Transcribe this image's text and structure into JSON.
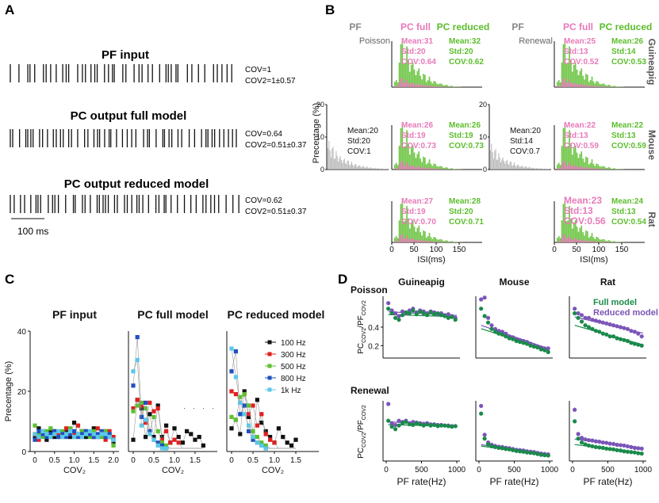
{
  "panels": {
    "A": {
      "letter": "A",
      "rows": [
        {
          "title": "PF input",
          "stat1": "COV=1",
          "stat2": "COV2=1±0.57"
        },
        {
          "title": "PC output full model",
          "stat1": "COV=0.64",
          "stat2": "COV2=0.51±0.37"
        },
        {
          "title": "PC output reduced model",
          "stat1": "COV=0.62",
          "stat2": "COV2=0.51±0.37"
        }
      ],
      "scalebar": "100 ms"
    },
    "B": {
      "letter": "B",
      "ylabel": "Precentage (%)",
      "xlabel": "ISI(ms)",
      "xticks": [
        "0",
        "50",
        "100",
        "150"
      ],
      "yticks": [
        "20",
        "10",
        "0"
      ],
      "colors": {
        "pf": "#b0b0b0",
        "full": "#e879b9",
        "reduced": "#5bbd2b"
      },
      "columns": [
        {
          "pf_head": "PF",
          "pf_kind": "Poisson",
          "full_head": "PC full",
          "reduced_head": "PC reduced"
        },
        {
          "pf_head": "PF",
          "pf_kind": "Renewal",
          "full_head": "PC full",
          "reduced_head": "PC reduced"
        }
      ],
      "row_labels": [
        "Guineapig",
        "Mouse",
        "Rat"
      ],
      "pf_stats": [
        {
          "mean": "Mean:20",
          "std": "Std:20",
          "cov": "COV:1"
        },
        {
          "mean": "Mean:20",
          "std": "Std:14",
          "cov": "COV:0.7"
        }
      ],
      "full_stats": [
        [
          {
            "mean": "Mean:31",
            "std": "Std:20",
            "cov": "COV:0.64"
          },
          {
            "mean": "Mean:25",
            "std": "Std:13",
            "cov": "COV:0.52"
          }
        ],
        [
          {
            "mean": "Mean:26",
            "std": "Std:19",
            "cov": "COV:0.73"
          },
          {
            "mean": "Mean:22",
            "std": "Std:13",
            "cov": "COV:0.59"
          }
        ],
        [
          {
            "mean": "Mean:27",
            "std": "Std:19",
            "cov": "COV:0.70"
          },
          {
            "mean": "Mean:23",
            "std": "Std:13",
            "cov": "COV:0.56"
          }
        ]
      ],
      "reduced_stats": [
        [
          {
            "mean": "Mean:32",
            "std": "Std:20",
            "cov": "COV:0.62"
          },
          {
            "mean": "Mean:26",
            "std": "Std:14",
            "cov": "COV:0.53"
          }
        ],
        [
          {
            "mean": "Mean:26",
            "std": "Std:19",
            "cov": "COV:0.73"
          },
          {
            "mean": "Mean:22",
            "std": "Std:13",
            "cov": "COV:0.59"
          }
        ],
        [
          {
            "mean": "Mean:28",
            "std": "Std:20",
            "cov": "COV:0.71"
          },
          {
            "mean": "Mean:24",
            "std": "Std:13",
            "cov": "COV:0.54"
          }
        ]
      ]
    },
    "C": {
      "letter": "C",
      "titles": [
        "PF input",
        "PC full model",
        "PC reduced model"
      ],
      "ylabel": "Precentage (%)",
      "xlabel": "COV₂",
      "yticks": [
        "40",
        "20",
        "0"
      ],
      "xticks_first": [
        "0",
        "0.5",
        "1.0",
        "1.5",
        "2.0"
      ],
      "xticks_other": [
        "0",
        "0.5",
        "1.0",
        "1.5",
        "2.0"
      ],
      "legend": [
        "100 Hz",
        "300 Hz",
        "500 Hz",
        "800 Hz",
        "1k Hz"
      ]
    },
    "D": {
      "letter": "D",
      "col_titles": [
        "Guineapig",
        "Mouse",
        "Rat"
      ],
      "row_titles": [
        "Poisson",
        "Renewal"
      ],
      "ylabel": "PCCOV2/PFCOV2",
      "ylabel_main": "PC",
      "ylabel_sub1": "COV2",
      "ylabel_mid": "/PF",
      "ylabel_sub2": "COV2",
      "xlabel": "PF rate(Hz)",
      "xticks": [
        "0",
        "500",
        "1000"
      ],
      "yticks": [
        "0.4",
        "0.2"
      ],
      "legend": [
        "Full model",
        "Reduced model"
      ],
      "colors": {
        "full": "#1a8a4a",
        "reduced": "#7b55b8"
      }
    }
  },
  "chart_data": [
    {
      "type": "bar",
      "panel": "B",
      "title": "",
      "xlabel": "ISI(ms)",
      "ylabel": "Precentage (%)",
      "xlim": [
        0,
        150
      ],
      "ylim": [
        0,
        20
      ],
      "series": [
        {
          "name": "PF",
          "color": "#b0b0b0",
          "values": [
            9,
            7.5,
            6,
            5,
            4.2,
            3.5,
            3,
            2.5,
            2,
            1.7,
            1.4,
            1.2,
            1,
            0.8,
            0.6,
            0.5,
            0.4,
            0.3,
            0.2,
            0.1
          ]
        },
        {
          "name": "PC full",
          "color": "#e879b9",
          "values": [
            2,
            15,
            12,
            9,
            7,
            5.5,
            4,
            3,
            2.2,
            1.6,
            1.1,
            0.7,
            0.4,
            0.2,
            0.1
          ]
        },
        {
          "name": "PC reduced",
          "color": "#5bbd2b",
          "values": [
            2,
            14,
            12,
            9,
            7,
            5.5,
            4,
            3,
            2.2,
            1.6,
            1.1,
            0.7,
            0.4,
            0.2,
            0.1
          ]
        }
      ]
    },
    {
      "type": "line",
      "panel": "C",
      "xlabel": "COV₂",
      "ylabel": "Precentage (%)",
      "ylim": [
        0,
        40
      ],
      "series": [
        {
          "name": "100 Hz",
          "color": "#111111",
          "markers": "square"
        },
        {
          "name": "300 Hz",
          "color": "#e02020",
          "markers": "square"
        },
        {
          "name": "500 Hz",
          "color": "#5cc030",
          "markers": "square"
        },
        {
          "name": "800 Hz",
          "color": "#2050c0",
          "markers": "square"
        },
        {
          "name": "1k Hz",
          "color": "#5cc8e8",
          "markers": "square"
        }
      ],
      "subplots": [
        {
          "title": "PF input",
          "x": [
            0,
            0.1,
            0.2,
            0.3,
            0.4,
            0.5,
            0.6,
            0.7,
            0.8,
            0.9,
            1.0,
            1.1,
            1.2,
            1.3,
            1.4,
            1.5,
            1.6,
            1.7,
            1.8,
            1.9,
            2.0
          ],
          "values": [
            [
              4,
              7,
              5,
              3,
              6,
              4,
              5,
              5,
              6,
              4,
              9,
              5,
              6,
              4,
              5,
              7,
              4,
              5,
              6,
              4,
              2
            ],
            [
              5,
              3,
              6,
              5,
              4,
              6,
              5,
              4,
              7,
              6,
              5,
              8,
              4,
              6,
              5,
              4,
              7,
              5,
              3,
              6,
              4
            ],
            [
              8,
              5,
              4,
              6,
              7,
              5,
              4,
              6,
              5,
              7,
              4,
              5,
              6,
              5,
              4,
              6,
              5,
              4,
              6,
              5,
              1
            ],
            [
              3,
              6,
              5,
              4,
              5,
              6,
              4,
              5,
              4,
              5,
              6,
              4,
              5,
              6,
              5,
              4,
              5,
              6,
              4,
              5,
              3
            ],
            [
              5,
              4,
              6,
              5,
              4,
              5,
              6,
              4,
              5,
              6,
              4,
              5,
              4,
              5,
              6,
              5,
              4,
              5,
              5,
              4,
              3
            ]
          ]
        },
        {
          "title": "PC full model",
          "x": [
            0,
            0.1,
            0.2,
            0.3,
            0.4,
            0.5,
            0.6,
            0.7,
            0.8,
            0.9,
            1.0,
            1.1,
            1.2,
            1.3,
            1.4,
            1.5,
            1.6,
            1.7
          ],
          "values": [
            [
              3,
              17,
              14,
              4,
              12,
              4,
              15,
              4,
              8,
              2,
              7,
              4,
              2,
              6,
              5,
              3,
              4,
              1
            ],
            [
              14,
              17,
              15,
              9,
              16,
              13,
              14,
              3,
              6,
              2,
              3,
              2,
              0,
              0,
              0,
              0,
              0,
              0
            ],
            [
              13,
              15,
              16,
              14,
              6,
              11,
              6,
              2,
              1,
              0,
              0,
              0,
              0,
              0,
              0,
              0,
              0,
              0
            ],
            [
              22,
              39,
              11,
              16,
              6,
              3,
              2,
              1,
              0,
              0,
              0,
              0,
              0,
              0,
              0,
              0,
              0,
              0
            ],
            [
              27,
              31,
              8,
              10,
              5,
              3,
              1,
              0,
              0,
              0,
              0,
              0,
              0,
              0,
              0,
              0,
              0,
              0
            ]
          ]
        },
        {
          "title": "PC reduced model",
          "x": [
            0,
            0.1,
            0.2,
            0.3,
            0.4,
            0.5,
            0.6,
            0.7,
            0.8,
            0.9,
            1.0,
            1.1,
            1.2,
            1.3,
            1.4,
            1.5
          ],
          "values": [
            [
              7,
              10,
              5,
              20,
              11,
              4,
              17,
              9,
              6,
              4,
              2,
              7,
              4,
              2,
              1,
              3
            ],
            [
              20,
              19,
              16,
              19,
              12,
              15,
              8,
              12,
              5,
              3,
              2,
              0,
              0,
              0,
              0,
              0
            ],
            [
              11,
              10,
              18,
              19,
              15,
              6,
              4,
              2,
              1,
              0,
              0,
              0,
              0,
              0,
              0,
              0
            ],
            [
              27,
              34,
              12,
              15,
              6,
              3,
              2,
              1,
              0,
              0,
              0,
              0,
              0,
              0,
              0,
              0
            ],
            [
              35,
              25,
              16,
              12,
              8,
              4,
              2,
              1,
              0,
              0,
              0,
              0,
              0,
              0,
              0,
              0
            ]
          ]
        }
      ]
    },
    {
      "type": "scatter",
      "panel": "D",
      "xlabel": "PF rate(Hz)",
      "xlim": [
        0,
        1000
      ],
      "x": [
        30,
        80,
        130,
        180,
        230,
        280,
        330,
        380,
        430,
        480,
        530,
        580,
        630,
        680,
        730,
        780,
        830,
        880,
        930,
        980
      ],
      "subplots": [
        {
          "row": "Poisson",
          "col": "Guineapig",
          "ylim": [
            0.1,
            0.7
          ],
          "full": [
            0.6,
            0.55,
            0.5,
            0.48,
            0.53,
            0.56,
            0.55,
            0.58,
            0.54,
            0.57,
            0.55,
            0.53,
            0.56,
            0.54,
            0.55,
            0.53,
            0.52,
            0.5,
            0.51,
            0.48
          ],
          "reduced": [
            0.66,
            0.58,
            0.55,
            0.52,
            0.57,
            0.55,
            0.58,
            0.6,
            0.56,
            0.58,
            0.57,
            0.55,
            0.57,
            0.56,
            0.54,
            0.55,
            0.53,
            0.54,
            0.52,
            0.5
          ]
        },
        {
          "row": "Poisson",
          "col": "Mouse",
          "ylim": [
            0.1,
            0.7
          ],
          "full": [
            0.6,
            0.52,
            0.45,
            0.38,
            0.35,
            0.33,
            0.32,
            0.3,
            0.28,
            0.27,
            0.25,
            0.24,
            0.23,
            0.22,
            0.2,
            0.19,
            0.18,
            0.16,
            0.15,
            0.13
          ],
          "reduced": [
            0.7,
            0.72,
            0.5,
            0.42,
            0.38,
            0.36,
            0.35,
            0.33,
            0.3,
            0.29,
            0.27,
            0.26,
            0.25,
            0.24,
            0.22,
            0.2,
            0.19,
            0.18,
            0.17,
            0.17
          ]
        },
        {
          "row": "Poisson",
          "col": "Rat",
          "ylim": [
            0.1,
            0.7
          ],
          "full": [
            0.55,
            0.5,
            0.46,
            0.42,
            0.4,
            0.38,
            0.36,
            0.35,
            0.33,
            0.32,
            0.3,
            0.3,
            0.28,
            0.27,
            0.26,
            0.25,
            0.23,
            0.22,
            0.21,
            0.2
          ],
          "reduced": [
            0.6,
            0.55,
            0.53,
            0.5,
            0.5,
            0.48,
            0.47,
            0.46,
            0.45,
            0.44,
            0.43,
            0.42,
            0.41,
            0.4,
            0.39,
            0.38,
            0.36,
            0.35,
            0.33,
            0.3
          ]
        },
        {
          "row": "Renewal",
          "col": "Guineapig",
          "ylim": [
            0.1,
            1.0
          ],
          "full": [
            0.72,
            0.62,
            0.58,
            0.64,
            0.68,
            0.7,
            0.66,
            0.65,
            0.68,
            0.66,
            0.64,
            0.66,
            0.64,
            0.65,
            0.63,
            0.64,
            0.64,
            0.63,
            0.62,
            0.63
          ],
          "reduced": [
            1.0,
            0.68,
            0.65,
            0.72,
            0.7,
            0.72,
            0.68,
            0.7,
            0.69,
            0.68,
            0.67,
            0.68,
            0.66,
            0.66,
            0.65,
            0.65,
            0.64,
            0.64,
            0.63,
            0.63
          ]
        },
        {
          "row": "Renewal",
          "col": "Mouse",
          "ylim": [
            0.1,
            1.5
          ],
          "full": [
            1.25,
            0.6,
            0.45,
            0.4,
            0.38,
            0.36,
            0.35,
            0.33,
            0.32,
            0.3,
            0.28,
            0.27,
            0.26,
            0.24,
            0.23,
            0.22,
            0.2,
            0.18,
            0.17,
            0.16
          ],
          "reduced": [
            1.45,
            0.7,
            0.5,
            0.44,
            0.41,
            0.39,
            0.38,
            0.36,
            0.35,
            0.33,
            0.31,
            0.3,
            0.29,
            0.27,
            0.26,
            0.25,
            0.23,
            0.21,
            0.2,
            0.19
          ]
        },
        {
          "row": "Renewal",
          "col": "Rat",
          "ylim": [
            0.1,
            1.5
          ],
          "full": [
            1.05,
            0.6,
            0.5,
            0.45,
            0.42,
            0.4,
            0.38,
            0.37,
            0.36,
            0.34,
            0.33,
            0.32,
            0.3,
            0.29,
            0.27,
            0.26,
            0.25,
            0.24,
            0.22,
            0.21
          ],
          "reduced": [
            1.35,
            0.72,
            0.62,
            0.58,
            0.56,
            0.55,
            0.53,
            0.52,
            0.5,
            0.49,
            0.47,
            0.46,
            0.44,
            0.43,
            0.42,
            0.4,
            0.38,
            0.36,
            0.35,
            0.34
          ]
        }
      ]
    }
  ]
}
